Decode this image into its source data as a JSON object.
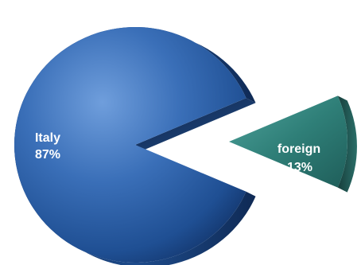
{
  "chart_data": {
    "type": "pie",
    "style": "3d-exploded",
    "title": "",
    "slices": [
      {
        "label": "Italy",
        "value_label": "87%",
        "value": 87,
        "color": "#2d5fa6",
        "exploded": false
      },
      {
        "label": "foreign",
        "value_label": "13%",
        "value": 13,
        "color": "#2f7f78",
        "exploded": true
      }
    ]
  }
}
